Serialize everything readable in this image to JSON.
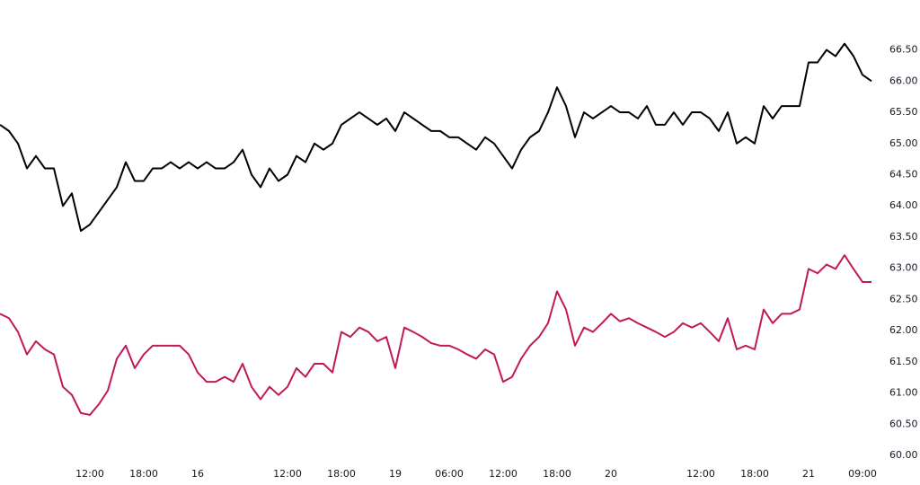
{
  "chart_data": {
    "type": "line",
    "categories": [
      null,
      null,
      null,
      null,
      null,
      null,
      null,
      null,
      null,
      null,
      "12:00",
      null,
      null,
      null,
      null,
      null,
      "18:00",
      null,
      null,
      null,
      null,
      null,
      "16",
      null,
      null,
      null,
      null,
      null,
      null,
      null,
      null,
      null,
      "12:00",
      null,
      null,
      null,
      null,
      null,
      "18:00",
      null,
      null,
      null,
      null,
      null,
      "19",
      null,
      null,
      null,
      null,
      null,
      "06:00",
      null,
      null,
      null,
      null,
      null,
      "12:00",
      null,
      null,
      null,
      null,
      null,
      "18:00",
      null,
      null,
      null,
      null,
      null,
      "20",
      null,
      null,
      null,
      null,
      null,
      null,
      null,
      null,
      null,
      "12:00",
      null,
      null,
      null,
      null,
      null,
      "18:00",
      null,
      null,
      null,
      null,
      null,
      "21",
      null,
      null,
      null,
      null,
      null,
      "09:00",
      null
    ],
    "series": [
      {
        "color": "#000000",
        "values": [
          65.3,
          65.2,
          65.0,
          64.6,
          64.8,
          64.6,
          64.6,
          64.0,
          64.2,
          63.6,
          63.7,
          63.9,
          64.1,
          64.3,
          64.7,
          64.4,
          64.4,
          64.6,
          64.6,
          64.7,
          64.6,
          64.7,
          64.6,
          64.7,
          64.6,
          64.6,
          64.7,
          64.9,
          64.5,
          64.3,
          64.6,
          64.4,
          64.5,
          64.8,
          64.7,
          65.0,
          64.9,
          65.0,
          65.3,
          65.4,
          65.5,
          65.4,
          65.3,
          65.4,
          65.2,
          65.5,
          65.4,
          65.3,
          65.2,
          65.2,
          65.1,
          65.1,
          65.0,
          64.9,
          65.1,
          65.0,
          64.8,
          64.6,
          64.9,
          65.1,
          65.2,
          65.5,
          65.9,
          65.6,
          65.1,
          65.5,
          65.4,
          65.5,
          65.6,
          65.5,
          65.5,
          65.4,
          65.6,
          65.3,
          65.3,
          65.5,
          65.3,
          65.5,
          65.5,
          65.4,
          65.2,
          65.5,
          65.0,
          65.1,
          65.0,
          65.6,
          65.4,
          65.6,
          65.6,
          65.6,
          66.3,
          66.3,
          66.5,
          66.4,
          66.6,
          66.4,
          66.1,
          66.0
        ]
      },
      {
        "color": "#c2185b",
        "values": [
          62.27,
          62.2,
          61.98,
          61.62,
          61.83,
          61.7,
          61.62,
          61.1,
          60.97,
          60.68,
          60.65,
          60.82,
          61.04,
          61.55,
          61.76,
          61.4,
          61.62,
          61.76,
          61.76,
          61.76,
          61.76,
          61.62,
          61.33,
          61.18,
          61.18,
          61.26,
          61.18,
          61.47,
          61.1,
          60.9,
          61.1,
          60.97,
          61.1,
          61.4,
          61.26,
          61.47,
          61.47,
          61.33,
          61.98,
          61.9,
          62.05,
          61.98,
          61.83,
          61.9,
          61.4,
          62.05,
          61.98,
          61.9,
          61.8,
          61.76,
          61.76,
          61.7,
          61.62,
          61.55,
          61.7,
          61.62,
          61.18,
          61.26,
          61.55,
          61.76,
          61.9,
          62.12,
          62.63,
          62.34,
          61.76,
          62.05,
          61.98,
          62.12,
          62.27,
          62.15,
          62.2,
          62.12,
          62.05,
          61.98,
          61.9,
          61.98,
          62.12,
          62.05,
          62.12,
          61.98,
          61.83,
          62.2,
          61.7,
          61.76,
          61.7,
          62.34,
          62.12,
          62.27,
          62.27,
          62.34,
          62.99,
          62.92,
          63.06,
          62.99,
          63.21,
          62.99,
          62.78,
          62.78
        ]
      }
    ],
    "ylim": [
      59.8,
      67.3
    ],
    "yticks": [
      {
        "value": 60,
        "label": "60.00"
      },
      {
        "value": 60.5,
        "label": "60.50"
      },
      {
        "value": 61,
        "label": "61.00"
      },
      {
        "value": 61.5,
        "label": "61.50"
      },
      {
        "value": 62,
        "label": "62.00"
      },
      {
        "value": 62.5,
        "label": "62.50"
      },
      {
        "value": 63,
        "label": "63.00"
      },
      {
        "value": 63.5,
        "label": "63.50"
      },
      {
        "value": 64,
        "label": "64.00"
      },
      {
        "value": 64.5,
        "label": "64.50"
      },
      {
        "value": 65,
        "label": "65.00"
      },
      {
        "value": 65.5,
        "label": "65.50"
      },
      {
        "value": 66,
        "label": "66.00"
      },
      {
        "value": 66.5,
        "label": "66.50"
      }
    ],
    "grid": false
  }
}
